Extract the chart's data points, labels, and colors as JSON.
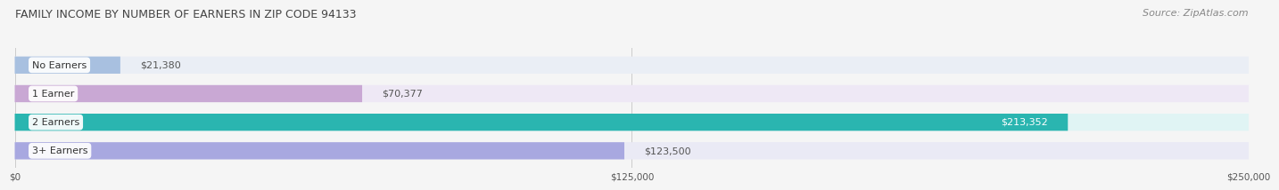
{
  "title": "FAMILY INCOME BY NUMBER OF EARNERS IN ZIP CODE 94133",
  "source": "Source: ZipAtlas.com",
  "categories": [
    "No Earners",
    "1 Earner",
    "2 Earners",
    "3+ Earners"
  ],
  "values": [
    21380,
    70377,
    213352,
    123500
  ],
  "bar_colors": [
    "#a8c0e0",
    "#c9a8d4",
    "#2ab5b0",
    "#a8a8e0"
  ],
  "bar_bg_colors": [
    "#eaeef5",
    "#eee8f5",
    "#e0f4f4",
    "#eaeaf5"
  ],
  "label_colors": [
    "#555555",
    "#555555",
    "#ffffff",
    "#555555"
  ],
  "xlim": [
    0,
    250000
  ],
  "xticks": [
    0,
    125000,
    250000
  ],
  "xtick_labels": [
    "$0",
    "$125,000",
    "$250,000"
  ],
  "bar_height": 0.6,
  "background_color": "#f5f5f5",
  "title_fontsize": 9,
  "source_fontsize": 8,
  "label_fontsize": 8,
  "category_fontsize": 8
}
